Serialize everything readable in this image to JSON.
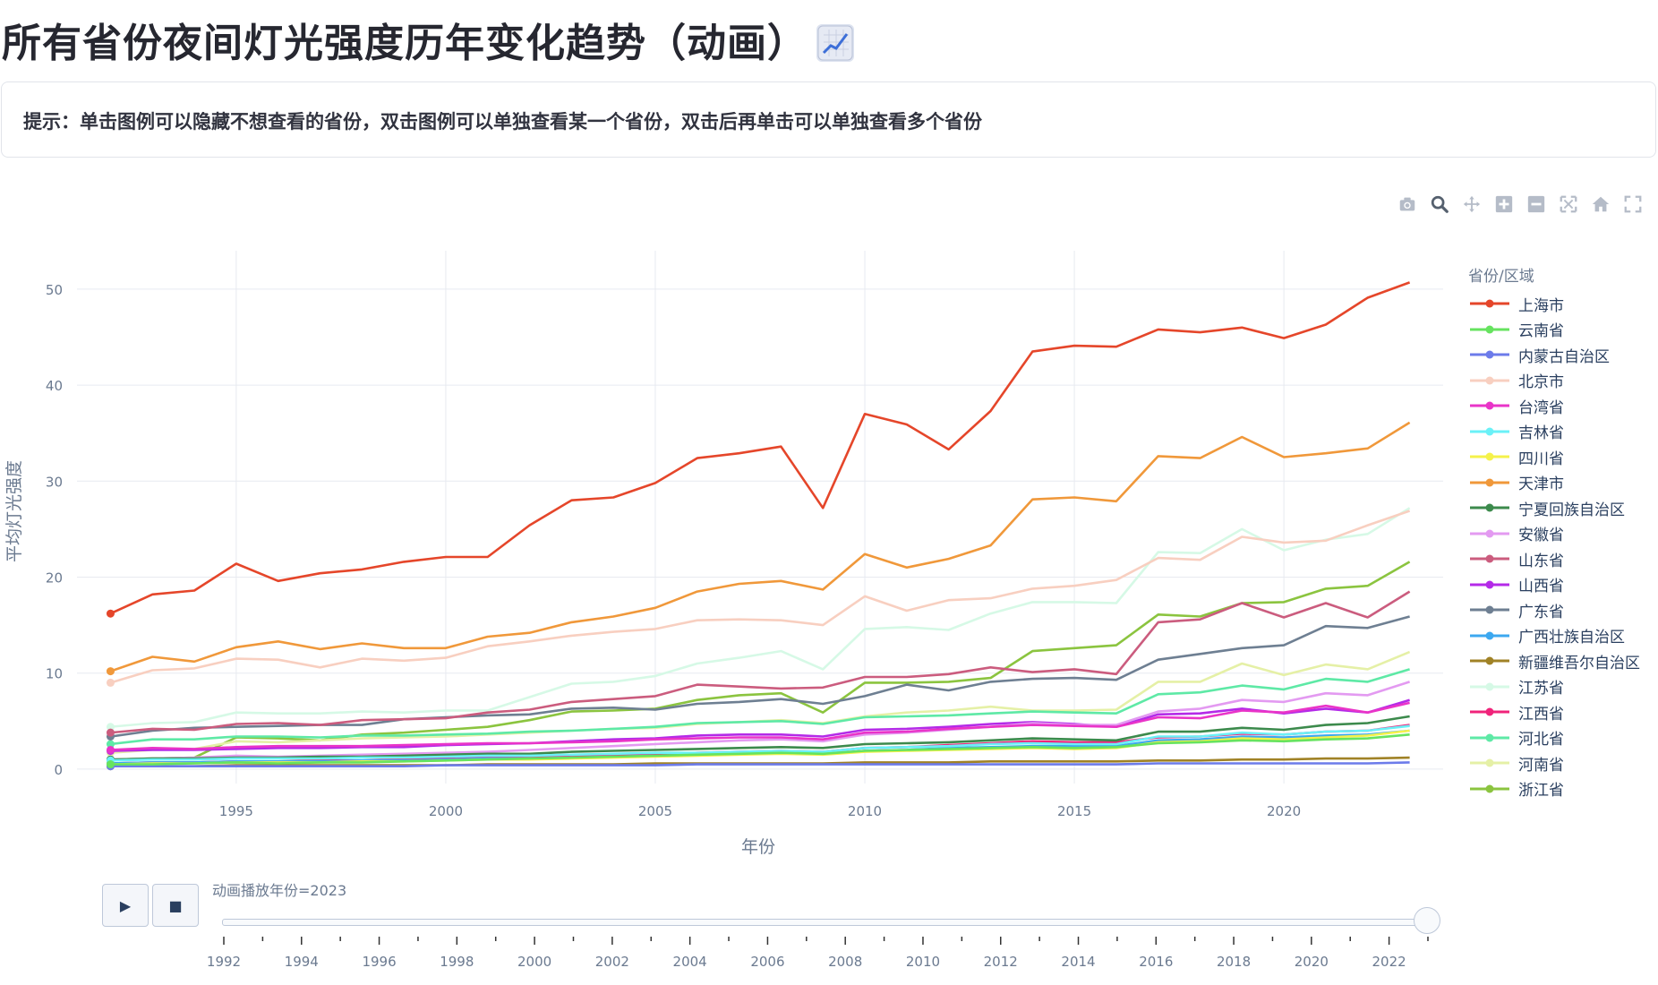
{
  "page": {
    "title": "所有省份夜间灯光强度历年变化趋势（动画）",
    "title_icon": "chart-increasing-emoji",
    "hint": "提示：单击图例可以隐藏不想查看的省份，双击图例可以单独查看某一个省份，双击后再单击可以单独查看多个省份"
  },
  "modebar": {
    "icons": [
      "camera-icon",
      "zoom-icon",
      "pan-icon",
      "zoom-in-icon",
      "zoom-out-icon",
      "autoscale-icon",
      "reset-axes-icon",
      "fullscreen-icon"
    ]
  },
  "chart_data": {
    "type": "line",
    "xlabel": "年份",
    "ylabel": "平均灯光强度",
    "legend_title": "省份/区域",
    "legend_position": "right",
    "grid": true,
    "xlim": [
      1991.2,
      2023.8
    ],
    "ylim": [
      -1.5,
      54
    ],
    "x_ticks": [
      1995,
      2000,
      2005,
      2010,
      2015,
      2020
    ],
    "y_ticks": [
      0,
      10,
      20,
      30,
      40,
      50
    ],
    "x": [
      1992,
      1993,
      1994,
      1995,
      1996,
      1997,
      1998,
      1999,
      2000,
      2001,
      2002,
      2003,
      2004,
      2005,
      2006,
      2007,
      2008,
      2009,
      2010,
      2011,
      2012,
      2013,
      2014,
      2015,
      2016,
      2017,
      2018,
      2019,
      2020,
      2021,
      2022,
      2023
    ],
    "series": [
      {
        "name": "上海市",
        "color": "#E5462A",
        "values": [
          16.2,
          18.2,
          18.6,
          21.4,
          19.6,
          20.4,
          20.8,
          21.6,
          22.1,
          22.1,
          25.4,
          28.0,
          28.3,
          29.8,
          32.4,
          32.9,
          33.6,
          27.2,
          37.0,
          35.9,
          33.3,
          37.3,
          43.5,
          44.1,
          44.0,
          45.8,
          45.5,
          46.0,
          44.9,
          46.3,
          49.1,
          50.7
        ]
      },
      {
        "name": "云南省",
        "color": "#66E35F",
        "values": [
          0.5,
          0.5,
          0.6,
          0.7,
          0.6,
          0.7,
          0.7,
          0.8,
          0.9,
          1.0,
          1.1,
          1.2,
          1.3,
          1.4,
          1.5,
          1.6,
          1.7,
          1.6,
          1.9,
          2.0,
          2.1,
          2.2,
          2.3,
          2.2,
          2.3,
          2.7,
          2.8,
          3.0,
          2.9,
          3.1,
          3.2,
          3.6
        ]
      },
      {
        "name": "内蒙古自治区",
        "color": "#6C7BEA",
        "values": [
          0.3,
          0.3,
          0.3,
          0.3,
          0.3,
          0.3,
          0.3,
          0.3,
          0.4,
          0.4,
          0.4,
          0.4,
          0.4,
          0.4,
          0.5,
          0.5,
          0.5,
          0.5,
          0.5,
          0.5,
          0.5,
          0.5,
          0.5,
          0.5,
          0.5,
          0.6,
          0.6,
          0.6,
          0.6,
          0.6,
          0.6,
          0.7
        ]
      },
      {
        "name": "北京市",
        "color": "#F8CFC0",
        "values": [
          9.0,
          10.3,
          10.5,
          11.5,
          11.4,
          10.6,
          11.5,
          11.3,
          11.6,
          12.8,
          13.3,
          13.9,
          14.3,
          14.6,
          15.5,
          15.6,
          15.5,
          15.0,
          18.0,
          16.5,
          17.6,
          17.8,
          18.8,
          19.1,
          19.7,
          22.0,
          21.8,
          24.2,
          23.6,
          23.8,
          25.4,
          26.9
        ]
      },
      {
        "name": "台湾省",
        "color": "#E934C8",
        "values": [
          2.0,
          2.2,
          2.1,
          2.3,
          2.4,
          2.4,
          2.4,
          2.5,
          2.6,
          2.7,
          2.7,
          2.8,
          2.9,
          3.1,
          3.2,
          3.3,
          3.3,
          3.1,
          3.8,
          3.9,
          4.2,
          4.4,
          4.6,
          4.5,
          4.4,
          5.4,
          5.3,
          6.1,
          5.9,
          6.6,
          5.9,
          6.9
        ]
      },
      {
        "name": "吉林省",
        "color": "#6AF1F7",
        "values": [
          0.9,
          1.0,
          1.0,
          1.1,
          1.1,
          1.1,
          1.2,
          1.2,
          1.3,
          1.4,
          1.4,
          1.5,
          1.6,
          1.7,
          1.7,
          1.8,
          1.9,
          1.8,
          2.2,
          2.3,
          2.4,
          2.6,
          2.7,
          2.6,
          2.6,
          3.4,
          3.4,
          3.8,
          3.6,
          3.9,
          4.0,
          4.5
        ]
      },
      {
        "name": "四川省",
        "color": "#F5F24A",
        "values": [
          0.5,
          0.6,
          0.6,
          0.7,
          0.7,
          0.7,
          0.8,
          0.8,
          0.9,
          1.0,
          1.0,
          1.1,
          1.2,
          1.3,
          1.4,
          1.5,
          1.6,
          1.5,
          1.8,
          1.9,
          2.0,
          2.1,
          2.2,
          2.1,
          2.2,
          2.8,
          2.9,
          3.2,
          3.1,
          3.3,
          3.5,
          4.0
        ]
      },
      {
        "name": "天津市",
        "color": "#F0983A",
        "values": [
          10.2,
          11.7,
          11.2,
          12.7,
          13.3,
          12.5,
          13.1,
          12.6,
          12.6,
          13.8,
          14.2,
          15.3,
          15.9,
          16.8,
          18.5,
          19.3,
          19.6,
          18.7,
          22.4,
          21.0,
          21.9,
          23.3,
          28.1,
          28.3,
          27.9,
          32.6,
          32.4,
          34.6,
          32.5,
          32.9,
          33.4,
          36.1
        ]
      },
      {
        "name": "宁夏回族自治区",
        "color": "#3C8A4C",
        "values": [
          1.0,
          1.1,
          1.1,
          1.2,
          1.2,
          1.3,
          1.3,
          1.4,
          1.5,
          1.6,
          1.6,
          1.8,
          1.9,
          2.0,
          2.1,
          2.2,
          2.3,
          2.2,
          2.6,
          2.7,
          2.8,
          3.0,
          3.2,
          3.1,
          3.0,
          3.9,
          3.9,
          4.3,
          4.1,
          4.6,
          4.8,
          5.5
        ]
      },
      {
        "name": "安徽省",
        "color": "#E39AF1",
        "values": [
          1.0,
          1.1,
          1.2,
          1.4,
          1.3,
          1.4,
          1.5,
          1.6,
          1.7,
          1.8,
          2.0,
          2.2,
          2.4,
          2.6,
          2.8,
          3.0,
          3.1,
          2.9,
          3.6,
          3.8,
          4.1,
          4.4,
          4.8,
          4.6,
          4.6,
          6.0,
          6.3,
          7.2,
          7.0,
          7.9,
          7.7,
          9.1
        ]
      },
      {
        "name": "山东省",
        "color": "#CB5C7E",
        "values": [
          3.8,
          4.2,
          4.1,
          4.7,
          4.8,
          4.6,
          5.1,
          5.2,
          5.3,
          5.9,
          6.2,
          7.0,
          7.3,
          7.6,
          8.8,
          8.6,
          8.4,
          8.5,
          9.6,
          9.6,
          9.9,
          10.6,
          10.1,
          10.4,
          9.9,
          15.3,
          15.6,
          17.3,
          15.8,
          17.3,
          15.8,
          18.5
        ]
      },
      {
        "name": "山西省",
        "color": "#B42AE8",
        "values": [
          1.9,
          2.0,
          2.0,
          2.1,
          2.2,
          2.2,
          2.3,
          2.3,
          2.5,
          2.6,
          2.7,
          2.9,
          3.1,
          3.2,
          3.5,
          3.6,
          3.6,
          3.4,
          4.1,
          4.2,
          4.4,
          4.7,
          4.9,
          4.7,
          4.4,
          5.7,
          5.8,
          6.3,
          5.8,
          6.3,
          5.9,
          7.2
        ]
      },
      {
        "name": "广东省",
        "color": "#6E7F92",
        "values": [
          3.4,
          4.0,
          4.3,
          4.4,
          4.5,
          4.6,
          4.6,
          5.2,
          5.4,
          5.6,
          5.7,
          6.3,
          6.4,
          6.2,
          6.8,
          7.0,
          7.3,
          6.8,
          7.6,
          8.8,
          8.2,
          9.1,
          9.4,
          9.5,
          9.3,
          11.4,
          12.0,
          12.6,
          12.9,
          14.9,
          14.7,
          15.9
        ]
      },
      {
        "name": "广西壮族自治区",
        "color": "#3CA8F0",
        "values": [
          0.6,
          0.7,
          0.7,
          0.8,
          0.8,
          0.8,
          0.9,
          0.9,
          1.0,
          1.1,
          1.1,
          1.2,
          1.3,
          1.4,
          1.5,
          1.6,
          1.7,
          1.6,
          1.9,
          2.0,
          2.2,
          2.3,
          2.4,
          2.4,
          2.4,
          3.0,
          3.1,
          3.4,
          3.3,
          3.5,
          3.6,
          4.0
        ]
      },
      {
        "name": "新疆维吾尔自治区",
        "color": "#A08226",
        "values": [
          0.3,
          0.3,
          0.3,
          0.4,
          0.4,
          0.4,
          0.4,
          0.4,
          0.4,
          0.5,
          0.5,
          0.5,
          0.5,
          0.6,
          0.6,
          0.6,
          0.6,
          0.6,
          0.7,
          0.7,
          0.7,
          0.8,
          0.8,
          0.8,
          0.8,
          0.9,
          0.9,
          1.0,
          1.0,
          1.1,
          1.1,
          1.2
        ]
      },
      {
        "name": "江苏省",
        "color": "#D6F9E6",
        "values": [
          4.4,
          4.8,
          4.9,
          5.9,
          5.8,
          5.8,
          6.0,
          5.9,
          6.1,
          6.1,
          7.5,
          8.9,
          9.1,
          9.7,
          11.0,
          11.6,
          12.3,
          10.4,
          14.6,
          14.8,
          14.5,
          16.2,
          17.4,
          17.4,
          17.3,
          22.6,
          22.5,
          25.0,
          22.8,
          23.9,
          24.5,
          27.2
        ]
      },
      {
        "name": "江西省",
        "color": "#F0237A",
        "values": [
          0.6,
          0.7,
          0.7,
          0.8,
          0.8,
          0.9,
          0.9,
          1.0,
          1.1,
          1.2,
          1.2,
          1.3,
          1.4,
          1.5,
          1.7,
          1.8,
          1.9,
          1.8,
          2.2,
          2.3,
          2.5,
          2.7,
          2.9,
          2.8,
          2.8,
          3.3,
          3.4,
          3.7,
          3.6,
          3.9,
          4.0,
          4.6
        ]
      },
      {
        "name": "河北省",
        "color": "#5EE9A6",
        "values": [
          2.6,
          3.1,
          3.1,
          3.4,
          3.4,
          3.3,
          3.5,
          3.5,
          3.6,
          3.7,
          3.9,
          4.0,
          4.2,
          4.4,
          4.8,
          4.9,
          5.0,
          4.7,
          5.4,
          5.5,
          5.6,
          5.8,
          6.0,
          5.9,
          5.8,
          7.8,
          8.0,
          8.7,
          8.3,
          9.4,
          9.1,
          10.4
        ]
      },
      {
        "name": "河南省",
        "color": "#E5F0A6",
        "values": [
          1.7,
          2.0,
          2.1,
          2.9,
          2.8,
          3.0,
          3.2,
          3.3,
          3.4,
          3.6,
          3.8,
          4.0,
          4.2,
          4.3,
          4.7,
          4.9,
          5.1,
          4.8,
          5.5,
          5.9,
          6.1,
          6.5,
          6.1,
          6.1,
          6.2,
          9.1,
          9.1,
          11.0,
          9.8,
          10.9,
          10.4,
          12.2
        ]
      },
      {
        "name": "浙江省",
        "color": "#8BC43F",
        "values": [
          1.0,
          1.1,
          1.2,
          3.3,
          3.2,
          3.0,
          3.6,
          3.8,
          4.1,
          4.4,
          5.1,
          6.0,
          6.1,
          6.3,
          7.2,
          7.7,
          7.9,
          5.9,
          9.0,
          9.0,
          9.1,
          9.5,
          12.3,
          12.6,
          12.9,
          16.1,
          15.9,
          17.3,
          17.4,
          18.8,
          19.1,
          21.6
        ]
      }
    ]
  },
  "animation": {
    "label": "动画播放年份=2023",
    "current_year": 2023,
    "range": [
      1992,
      2023
    ],
    "tick_labels": [
      "1992",
      "1994",
      "1996",
      "1998",
      "2000",
      "2002",
      "2004",
      "2006",
      "2008",
      "2010",
      "2012",
      "2014",
      "2016",
      "2018",
      "2020",
      "2022"
    ],
    "play_icon": "play-icon",
    "stop_icon": "stop-icon"
  }
}
